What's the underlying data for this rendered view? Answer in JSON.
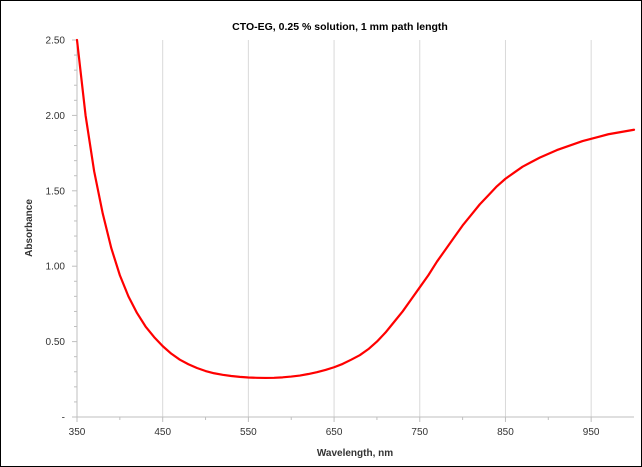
{
  "chart_data": {
    "type": "line",
    "title": "CTO-EG, 0.25 % solution, 1 mm path length",
    "xlabel": "Wavelength, nm",
    "ylabel": "Absorbance",
    "xlim": [
      350,
      1000
    ],
    "ylim": [
      0,
      2.5
    ],
    "x_ticks": [
      350,
      450,
      550,
      650,
      750,
      850,
      950
    ],
    "x_tick_labels": [
      "350",
      "450",
      "550",
      "650",
      "750",
      "850",
      "950"
    ],
    "y_ticks": [
      0,
      0.5,
      1.0,
      1.5,
      2.0,
      2.5
    ],
    "y_tick_labels": [
      "-",
      "0.50",
      "1.00",
      "1.50",
      "2.00",
      "2.50"
    ],
    "grid": {
      "vertical": true,
      "horizontal": false
    },
    "series": [
      {
        "color": "#ff0000",
        "x": [
          350,
          360,
          370,
          380,
          390,
          400,
          410,
          420,
          430,
          440,
          450,
          460,
          470,
          480,
          490,
          500,
          510,
          520,
          530,
          540,
          550,
          560,
          570,
          580,
          590,
          600,
          610,
          620,
          630,
          640,
          650,
          660,
          670,
          680,
          690,
          700,
          710,
          720,
          730,
          740,
          750,
          760,
          770,
          780,
          790,
          800,
          810,
          820,
          830,
          840,
          850,
          860,
          870,
          880,
          890,
          900,
          910,
          920,
          930,
          940,
          950,
          960,
          970,
          980,
          990,
          1000
        ],
        "y": [
          2.5,
          2.0,
          1.63,
          1.35,
          1.12,
          0.94,
          0.8,
          0.69,
          0.6,
          0.53,
          0.47,
          0.42,
          0.38,
          0.35,
          0.325,
          0.305,
          0.29,
          0.28,
          0.272,
          0.266,
          0.262,
          0.26,
          0.259,
          0.26,
          0.263,
          0.268,
          0.275,
          0.285,
          0.297,
          0.312,
          0.33,
          0.352,
          0.38,
          0.41,
          0.45,
          0.5,
          0.56,
          0.63,
          0.7,
          0.78,
          0.86,
          0.94,
          1.03,
          1.11,
          1.19,
          1.27,
          1.34,
          1.41,
          1.47,
          1.53,
          1.58,
          1.62,
          1.66,
          1.69,
          1.72,
          1.745,
          1.77,
          1.79,
          1.81,
          1.83,
          1.845,
          1.86,
          1.875,
          1.885,
          1.895,
          1.905
        ]
      }
    ]
  }
}
